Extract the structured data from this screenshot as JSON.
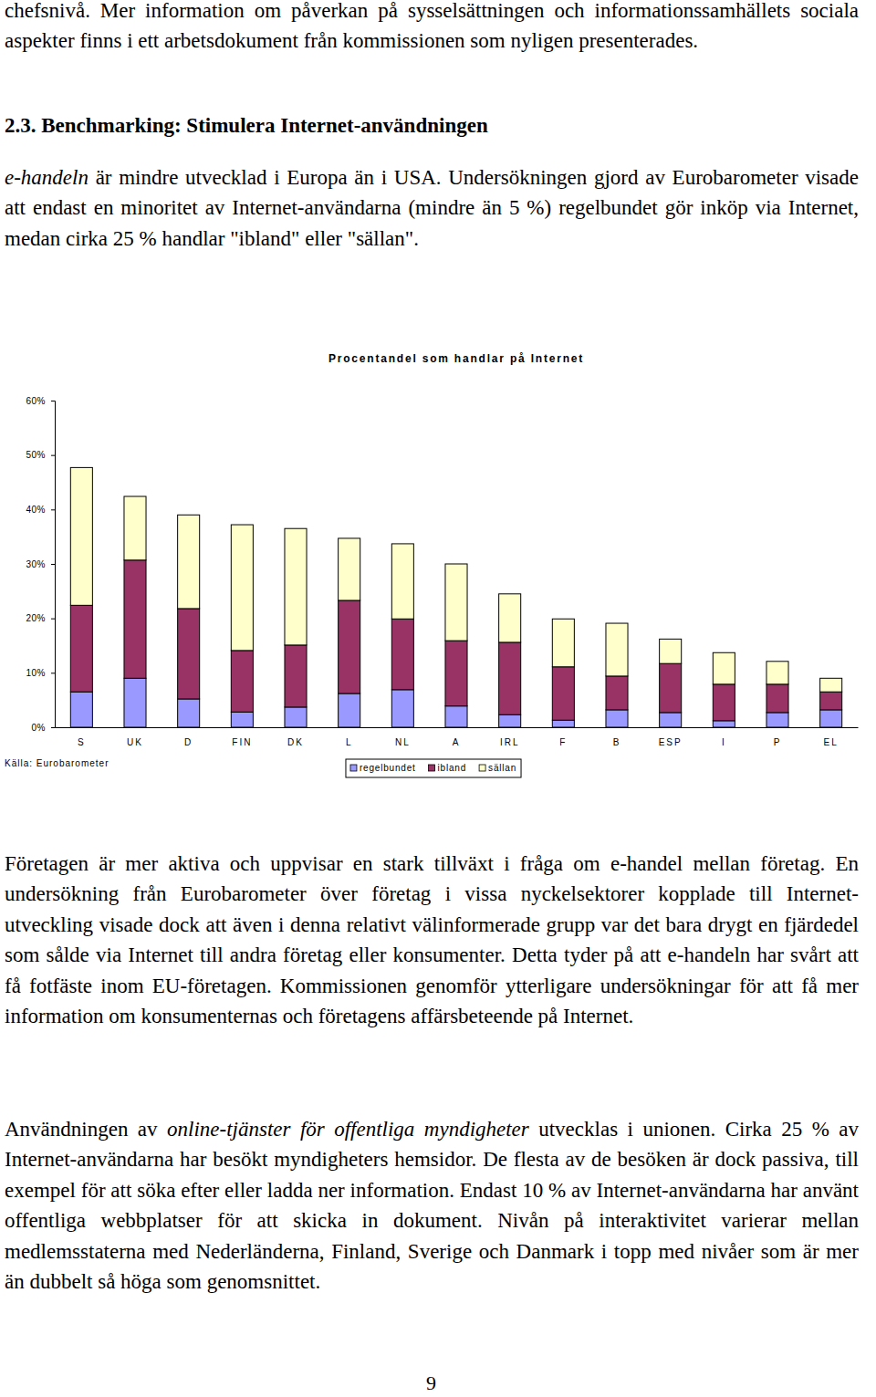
{
  "document": {
    "text_before": [
      {
        "runs": [
          {
            "text": "chefsnivå. Mer information om påverkan på sysselsättningen och informationssamhällets sociala aspekter finns i ett arbetsdokument från kommissionen som nyligen presenterades."
          }
        ]
      },
      {
        "heading": true,
        "runs": [
          {
            "text": "2.3. Benchmarking: Stimulera Internet-användningen"
          }
        ]
      },
      {
        "runs": [
          {
            "text": "e-handeln",
            "italic": true
          },
          {
            "text": " är mindre utvecklad i Europa än i USA. Undersökningen gjord av Eurobarometer visade att endast en minoritet av Internet-användarna (mindre än 5 %) regelbundet gör inköp via Internet, medan cirka 25 % handlar \"ibland\" eller \"sällan\"."
          }
        ]
      }
    ],
    "text_after": [
      {
        "runs": [
          {
            "text": "Företagen är mer aktiva och uppvisar en stark tillväxt i fråga om e-handel mellan företag. En undersökning från Eurobarometer över företag i vissa nyckelsektorer kopplade till Internet-utveckling visade dock att även i denna relativt välinformerade grupp var det bara drygt en fjärdedel som sålde via Internet till andra företag eller konsumenter. Detta tyder på att e-handeln har svårt att få fotfäste inom EU-företagen. Kommissionen genomför ytterligare undersökningar för att få mer information om konsumenternas och företagens affärsbeteende på Internet."
          }
        ]
      },
      {
        "runs": [
          {
            "text": "Användningen av "
          },
          {
            "text": "online-tjänster för offentliga myndigheter",
            "italic": true
          },
          {
            "text": " utvecklas i unionen. Cirka 25 % av Internet-användarna har besökt myndigheters hemsidor. De flesta av de besöken är dock passiva, till exempel för att söka efter eller ladda ner information. Endast 10 % av Internet-användarna har använt offentliga webbplatser för att skicka in dokument. Nivån på interaktivitet varierar mellan medlemsstaterna med Nederländerna, Finland, Sverige och Danmark i topp med nivåer som är mer än dubbelt så höga som genomsnittet."
          }
        ]
      }
    ],
    "page_number": "9"
  },
  "chart_data": {
    "type": "bar",
    "stacked": true,
    "title": "Procentandel som handlar på Internet",
    "categories": [
      "S",
      "UK",
      "D",
      "FIN",
      "DK",
      "L",
      "NL",
      "A",
      "IRL",
      "F",
      "B",
      "ESP",
      "I",
      "P",
      "EL"
    ],
    "series": [
      {
        "name": "regelbundet",
        "color": "#9999ff",
        "values": [
          6.5,
          9.0,
          5.2,
          2.8,
          3.7,
          6.2,
          6.9,
          3.9,
          2.3,
          1.3,
          3.2,
          2.7,
          1.2,
          2.7,
          3.2
        ]
      },
      {
        "name": "ibland",
        "color": "#993366",
        "values": [
          15.9,
          21.7,
          16.6,
          11.3,
          11.4,
          17.1,
          13.0,
          12.0,
          13.3,
          9.8,
          6.2,
          9.0,
          6.7,
          5.2,
          3.3
        ]
      },
      {
        "name": "sällan",
        "color": "#ffffcc",
        "values": [
          25.3,
          11.7,
          17.2,
          23.1,
          21.4,
          11.4,
          13.8,
          14.1,
          8.9,
          8.8,
          9.7,
          4.5,
          5.8,
          4.2,
          2.5
        ]
      }
    ],
    "ylim": [
      0,
      60
    ],
    "yticks": [
      {
        "value": 0,
        "label": "0%"
      },
      {
        "value": 10,
        "label": "10%"
      },
      {
        "value": 20,
        "label": "20%"
      },
      {
        "value": 30,
        "label": "30%"
      },
      {
        "value": 40,
        "label": "40%"
      },
      {
        "value": 50,
        "label": "50%"
      },
      {
        "value": 60,
        "label": "60%"
      }
    ],
    "grid": false,
    "legend": "bottom",
    "annotations": [
      "Källa: Eurobarometer"
    ]
  }
}
